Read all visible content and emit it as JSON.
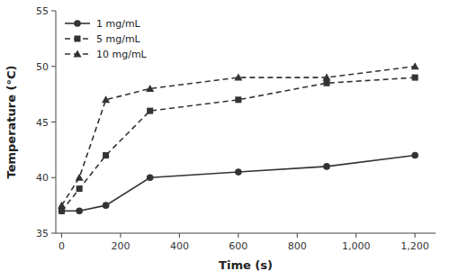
{
  "chart_data": {
    "type": "line",
    "x_label": "Time (s)",
    "y_label": "Temperature (°C)",
    "x": [
      0,
      60,
      150,
      300,
      600,
      900,
      1200
    ],
    "series": [
      {
        "name": "1 mg/mL",
        "color": "#333333",
        "marker": "circle",
        "line_style": "solid",
        "values": [
          37.0,
          37.0,
          37.5,
          40.0,
          40.5,
          41.0,
          42.0
        ]
      },
      {
        "name": "5 mg/mL",
        "color": "#333333",
        "marker": "square",
        "line_style": "dashed",
        "values": [
          37.0,
          39.0,
          42.0,
          46.0,
          47.0,
          48.5,
          49.0
        ]
      },
      {
        "name": "10 mg/mL",
        "color": "#333333",
        "marker": "triangle",
        "line_style": "dashed",
        "values": [
          37.5,
          40.0,
          47.0,
          48.0,
          49.0,
          49.0,
          50.0
        ]
      }
    ],
    "xlim": [
      -20,
      1270
    ],
    "ylim": [
      35,
      55
    ],
    "xticks": [
      0,
      200,
      400,
      600,
      800,
      {
        "value": 1000,
        "label": "1,000"
      },
      {
        "value": 1200,
        "label": "1,200"
      }
    ],
    "yticks": [
      35,
      40,
      45,
      50,
      55
    ],
    "grid": false,
    "legend": "upper left"
  }
}
